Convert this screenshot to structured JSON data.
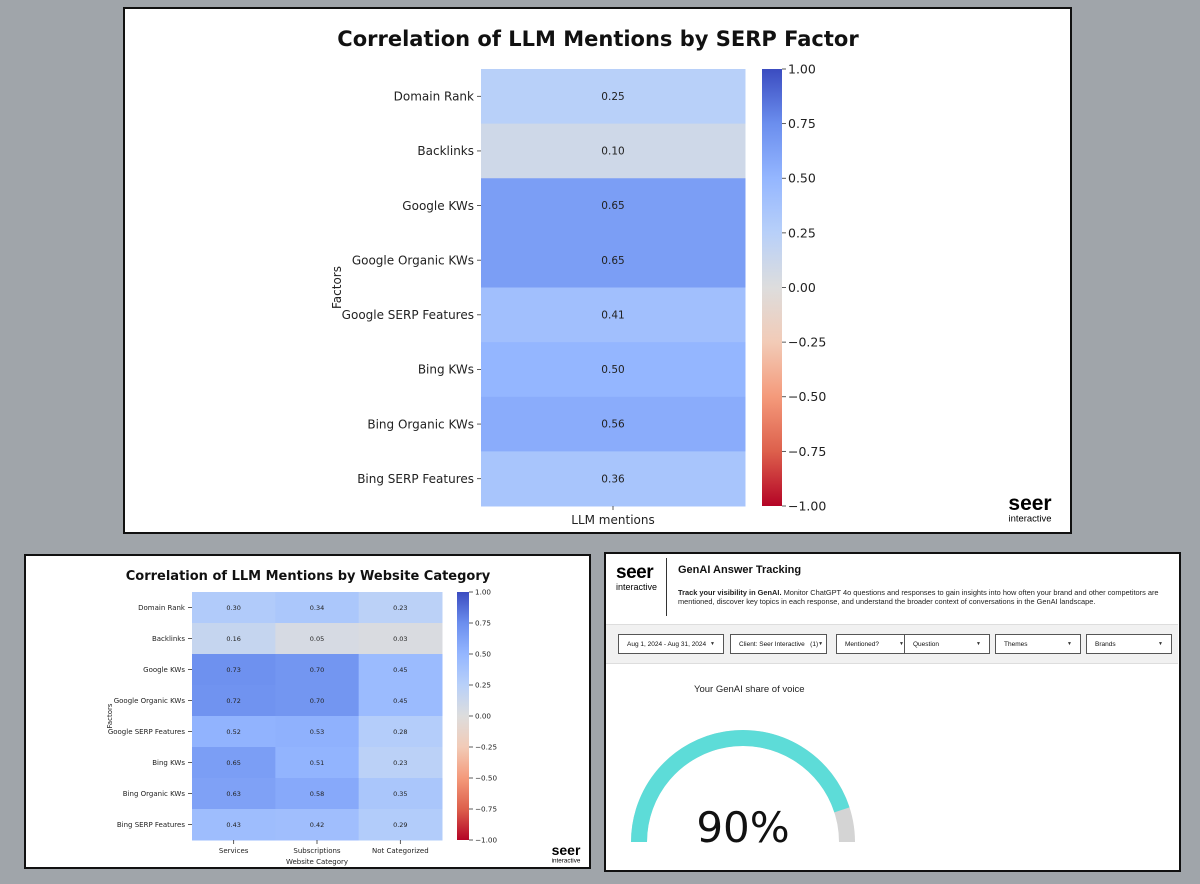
{
  "chart_data": [
    {
      "type": "heatmap",
      "title": "Correlation of LLM Mentions by SERP Factor",
      "xlabel": "",
      "ylabel": "Factors",
      "x": [
        "LLM mentions"
      ],
      "y": [
        "Domain Rank",
        "Backlinks",
        "Google KWs",
        "Google Organic KWs",
        "Google SERP Features",
        "Bing KWs",
        "Bing Organic KWs",
        "Bing SERP Features"
      ],
      "values": [
        [
          0.25
        ],
        [
          0.1
        ],
        [
          0.65
        ],
        [
          0.65
        ],
        [
          0.41
        ],
        [
          0.5
        ],
        [
          0.56
        ],
        [
          0.36
        ]
      ],
      "labels": [
        [
          "0.25"
        ],
        [
          "0.10"
        ],
        [
          "0.65"
        ],
        [
          "0.65"
        ],
        [
          "0.41"
        ],
        [
          "0.50"
        ],
        [
          "0.56"
        ],
        [
          "0.36"
        ]
      ],
      "colorbar": {
        "range": [
          -1,
          1
        ],
        "ticks": [
          "1.00",
          "0.75",
          "0.50",
          "0.25",
          "0.00",
          "−0.25",
          "−0.50",
          "−0.75",
          "−1.00"
        ],
        "colormap": "coolwarm"
      }
    },
    {
      "type": "heatmap",
      "title": "Correlation of LLM Mentions by Website Category",
      "xlabel": "Website Category",
      "ylabel": "Factors",
      "x": [
        "Services",
        "Subscriptions",
        "Not Categorized"
      ],
      "y": [
        "Domain Rank",
        "Backlinks",
        "Google KWs",
        "Google Organic KWs",
        "Google SERP Features",
        "Bing KWs",
        "Bing Organic KWs",
        "Bing SERP Features"
      ],
      "values": [
        [
          0.3,
          0.34,
          0.23
        ],
        [
          0.16,
          0.05,
          0.03
        ],
        [
          0.73,
          0.7,
          0.45
        ],
        [
          0.72,
          0.7,
          0.45
        ],
        [
          0.52,
          0.53,
          0.28
        ],
        [
          0.65,
          0.51,
          0.23
        ],
        [
          0.63,
          0.58,
          0.35
        ],
        [
          0.43,
          0.42,
          0.29
        ]
      ],
      "labels": [
        [
          "0.30",
          "0.34",
          "0.23"
        ],
        [
          "0.16",
          "0.05",
          "0.03"
        ],
        [
          "0.73",
          "0.70",
          "0.45"
        ],
        [
          "0.72",
          "0.70",
          "0.45"
        ],
        [
          "0.52",
          "0.53",
          "0.28"
        ],
        [
          "0.65",
          "0.51",
          "0.23"
        ],
        [
          "0.63",
          "0.58",
          "0.35"
        ],
        [
          "0.43",
          "0.42",
          "0.29"
        ]
      ],
      "colorbar": {
        "range": [
          -1,
          1
        ],
        "ticks": [
          "1.00",
          "0.75",
          "0.50",
          "0.25",
          "0.00",
          "−0.25",
          "−0.50",
          "−0.75",
          "−1.00"
        ],
        "colormap": "coolwarm"
      }
    }
  ],
  "brand": {
    "name": "seer",
    "sub": "interactive"
  },
  "dashboard": {
    "title": "GenAI Answer Tracking",
    "desc_bold": "Track your visibility in GenAI.",
    "desc_rest": " Monitor ChatGPT 4o questions and responses to gain insights into how often your brand and other competitors are mentioned, discover key topics in each response, and understand the broader context of conversations in the GenAI landscape.",
    "filters": [
      {
        "label": "Aug 1, 2024 - Aug 31, 2024"
      },
      {
        "label": "Client: Seer Interactive   (1)"
      },
      {
        "label": "Mentioned?"
      },
      {
        "label": "Question"
      },
      {
        "label": "Themes"
      },
      {
        "label": "Brands"
      }
    ],
    "gauge": {
      "label": "Your GenAI share of voice",
      "value": 90,
      "value_text": "90%",
      "color": "#5ddcd8",
      "track_color": "#d4d4d4"
    }
  }
}
